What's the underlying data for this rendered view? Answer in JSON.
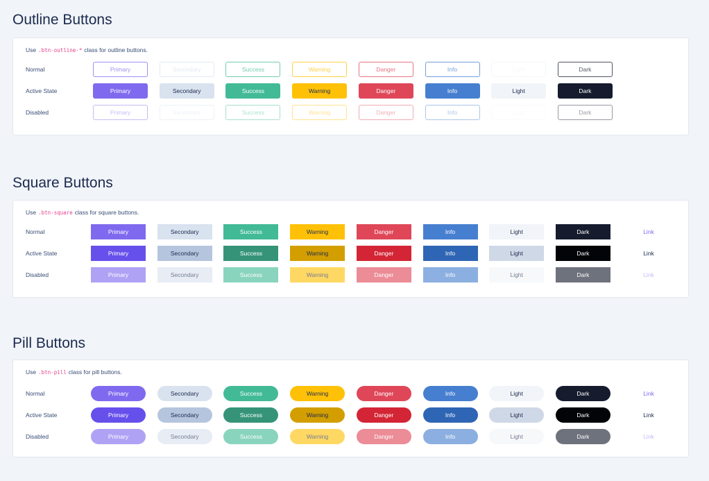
{
  "variants": [
    "primary",
    "secondary",
    "success",
    "warning",
    "danger",
    "info",
    "light",
    "dark"
  ],
  "sections": [
    {
      "id": "outline",
      "title": "Outline Buttons",
      "desc_prefix": "Use",
      "desc_code": ".btn-outline-*",
      "desc_suffix": "class for outline buttons.",
      "has_link": false,
      "rows": [
        {
          "label": "Normal",
          "state": "normal"
        },
        {
          "label": "Active State",
          "state": "active"
        },
        {
          "label": "Disabled",
          "state": "disabled"
        }
      ]
    },
    {
      "id": "square",
      "title": "Square Buttons",
      "desc_prefix": "Use",
      "desc_code": ".btn-square",
      "desc_suffix": "class for square buttons.",
      "has_link": true,
      "rows": [
        {
          "label": "Normal",
          "state": "normal"
        },
        {
          "label": "Active State",
          "state": "active"
        },
        {
          "label": "Disabled",
          "state": "disabled"
        }
      ]
    },
    {
      "id": "pill",
      "title": "Pill Buttons",
      "desc_prefix": "Use",
      "desc_code": ".btn-pill",
      "desc_suffix": "class for pill buttons.",
      "has_link": true,
      "rows": [
        {
          "label": "Normal",
          "state": "normal"
        },
        {
          "label": "Active State",
          "state": "active"
        },
        {
          "label": "Disabled",
          "state": "disabled"
        }
      ]
    }
  ],
  "button_labels": [
    "Primary",
    "Secondary",
    "Success",
    "Warning",
    "Danger",
    "Info",
    "Light",
    "Dark"
  ],
  "link_label": "Link",
  "colors": {
    "primary": "#7f6aef",
    "secondary": "#d9e2ef",
    "success": "#42ba96",
    "warning": "#ffc107",
    "danger": "#df4759",
    "info": "#467fd0",
    "light": "#f1f4f8",
    "dark": "#161c2d",
    "link_active": "#1b2a4e"
  }
}
